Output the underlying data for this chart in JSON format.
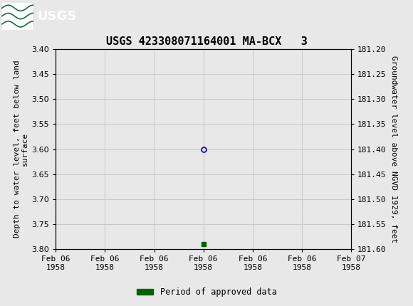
{
  "title": "USGS 423308071164001 MA-BCX   3",
  "title_fontsize": 11,
  "title_font": "monospace",
  "header_bg_color": "#1a6b3a",
  "left_ylabel": "Depth to water level, feet below land\nsurface",
  "right_ylabel": "Groundwater level above NGVD 1929, feet",
  "ylabel_fontsize": 8,
  "ylabel_font": "monospace",
  "ylim_left": [
    3.4,
    3.8
  ],
  "ylim_right": [
    181.6,
    181.2
  ],
  "yticks_left": [
    3.4,
    3.45,
    3.5,
    3.55,
    3.6,
    3.65,
    3.7,
    3.75,
    3.8
  ],
  "yticks_right": [
    181.6,
    181.55,
    181.5,
    181.45,
    181.4,
    181.35,
    181.3,
    181.25,
    181.2
  ],
  "yticks_right_labels": [
    "181.60",
    "181.55",
    "181.50",
    "181.45",
    "181.40",
    "181.35",
    "181.30",
    "181.25",
    "181.20"
  ],
  "xlim": [
    0,
    6
  ],
  "xtick_positions": [
    0,
    1,
    2,
    3,
    4,
    5,
    6
  ],
  "xtick_labels": [
    "Feb 06\n1958",
    "Feb 06\n1958",
    "Feb 06\n1958",
    "Feb 06\n1958",
    "Feb 06\n1958",
    "Feb 06\n1958",
    "Feb 07\n1958"
  ],
  "data_point_x": 3.0,
  "data_point_y": 3.6,
  "data_point_color": "#0000cc",
  "data_point_marker": "o",
  "data_point_size": 5,
  "green_bar_x": 3.0,
  "green_bar_y": 3.79,
  "green_bar_color": "#006400",
  "green_bar_marker": "s",
  "green_bar_size": 4,
  "legend_label": "Period of approved data",
  "legend_color": "#006400",
  "grid_color": "#c8c8c8",
  "bg_color": "#e8e8e8",
  "plot_bg_color": "#e8e8e8",
  "tick_font": "monospace",
  "tick_fontsize": 8
}
